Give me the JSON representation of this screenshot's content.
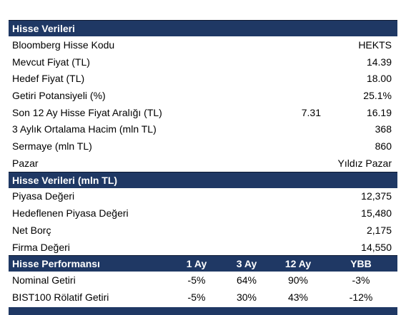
{
  "sections": [
    {
      "title": "Hisse Verileri",
      "rows": [
        {
          "label": "Bloomberg Hisse Kodu",
          "value": "HEKTS"
        },
        {
          "label": "Mevcut Fiyat (TL)",
          "value": "14.39"
        },
        {
          "label": "Hedef Fiyat (TL)",
          "value": "18.00"
        },
        {
          "label": "Getiri Potansiyeli (%)",
          "value": "25.1%"
        },
        {
          "label": "Son 12 Ay Hisse Fiyat Aralığı (TL)",
          "low": "7.31",
          "value": "16.19"
        },
        {
          "label": "3 Aylık Ortalama Hacim (mln TL)",
          "value": "368"
        },
        {
          "label": "Sermaye (mln TL)",
          "value": "860"
        },
        {
          "label": "Pazar",
          "value": "Yıldız Pazar"
        }
      ]
    },
    {
      "title": "Hisse Verileri (mln TL)",
      "rows": [
        {
          "label": "Piyasa Değeri",
          "value": "12,375"
        },
        {
          "label": "Hedeflenen Piyasa Değeri",
          "value": "15,480"
        },
        {
          "label": "Net Borç",
          "value": "2,175"
        },
        {
          "label": "Firma Değeri",
          "value": "14,550"
        }
      ]
    }
  ],
  "performance": {
    "title": "Hisse Performansı",
    "columns": [
      "1 Ay",
      "3 Ay",
      "12 Ay",
      "YBB"
    ],
    "rows": [
      {
        "label": "Nominal Getiri",
        "values": [
          "-5%",
          "64%",
          "90%",
          "-3%"
        ]
      },
      {
        "label": "BIST100 Rölatif Getiri",
        "values": [
          "-5%",
          "30%",
          "43%",
          "-12%"
        ]
      }
    ]
  }
}
